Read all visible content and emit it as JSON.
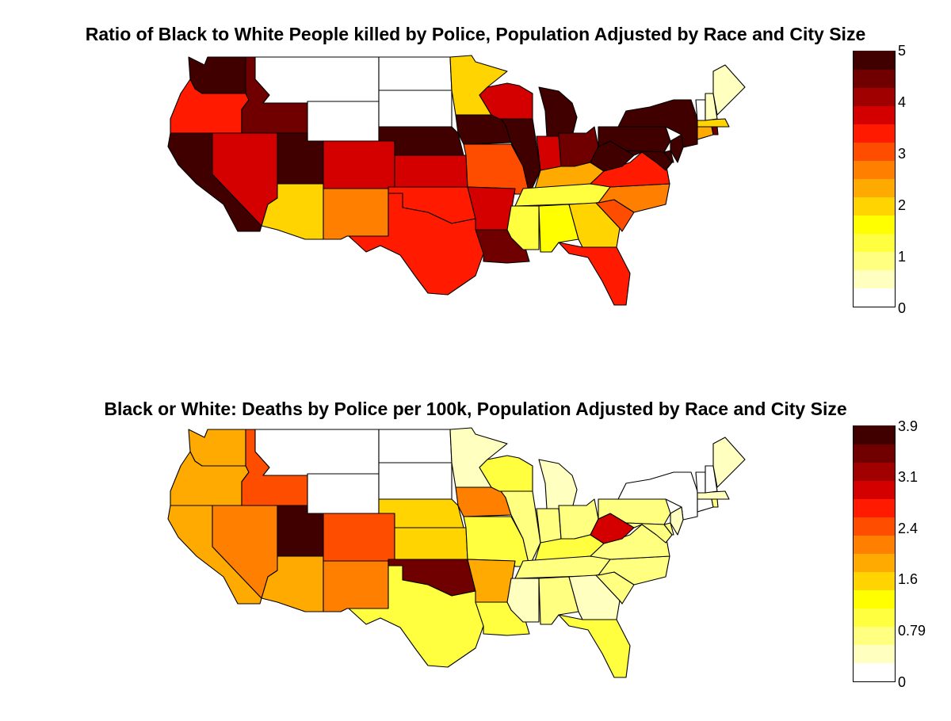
{
  "maps": [
    {
      "id": "top",
      "title": "Ratio of Black to White People killed by Police, Population Adjusted by Race and City Size",
      "colorbar": {
        "min": 0,
        "max": 5,
        "tick_labels": [
          "5",
          "4",
          "3",
          "2",
          "1",
          "0"
        ],
        "colors": [
          "#ffffff",
          "#ffffc0",
          "#ffff80",
          "#ffff40",
          "#ffff00",
          "#ffd400",
          "#ffaa00",
          "#ff8000",
          "#ff4d00",
          "#ff1a00",
          "#d40000",
          "#a00000",
          "#700000",
          "#400000"
        ]
      },
      "states": {
        "WA": 4.9,
        "OR": 3.3,
        "CA": 4.9,
        "NV": 3.6,
        "ID": 4.4,
        "MT": 0,
        "WY": 0,
        "UT": 4.9,
        "AZ": 1.8,
        "CO": 3.8,
        "NM": 2.5,
        "ND": 0,
        "SD": 0,
        "NE": 4.9,
        "KS": 3.6,
        "OK": 3.3,
        "TX": 3.3,
        "MN": 1.8,
        "IA": 4.9,
        "MO": 2.9,
        "AR": 3.6,
        "LA": 4.5,
        "WI": 3.6,
        "IL": 4.9,
        "MI": 4.9,
        "IN": 3.6,
        "OH": 4.4,
        "KY": 2.2,
        "TN": 1.4,
        "MS": 1.4,
        "AL": 1.6,
        "GA": 1.8,
        "FL": 3.3,
        "SC": 2.9,
        "NC": 2.6,
        "VA": 3.3,
        "WV": 4.9,
        "PA": 4.9,
        "NY": 4.9,
        "MD": 4.9,
        "DE": 4.9,
        "NJ": 4.9,
        "CT": 2.4,
        "RI": 4.4,
        "MA": 1.8,
        "VT": 0,
        "NH": 0.6,
        "ME": 0.6
      }
    },
    {
      "id": "bottom",
      "title": "Black or White: Deaths by Police per 100k, Population Adjusted by Race and City Size",
      "colorbar": {
        "min": 0,
        "max": 3.9,
        "tick_labels": [
          "3.9",
          "3.1",
          "2.4",
          "1.6",
          "0.79",
          "0"
        ],
        "colors": [
          "#ffffff",
          "#ffffc0",
          "#ffff80",
          "#ffff40",
          "#ffff00",
          "#ffd400",
          "#ffaa00",
          "#ff8000",
          "#ff4d00",
          "#ff1a00",
          "#d40000",
          "#a00000",
          "#700000",
          "#400000"
        ]
      },
      "states": {
        "WA": 1.9,
        "OR": 1.9,
        "CA": 1.9,
        "NV": 2.2,
        "ID": 2.4,
        "MT": 0,
        "WY": 0,
        "UT": 3.8,
        "AZ": 1.8,
        "CO": 2.5,
        "NM": 2.1,
        "ND": 0,
        "SD": 0,
        "NE": 1.4,
        "KS": 1.4,
        "OK": 3.6,
        "TX": 1.1,
        "MN": 0.4,
        "IA": 2.1,
        "MO": 0.9,
        "AR": 1.8,
        "LA": 0.9,
        "WI": 0.9,
        "IL": 0.7,
        "MI": 0.5,
        "IN": 0.8,
        "OH": 0.8,
        "KY": 1.0,
        "TN": 0.6,
        "MS": 0.4,
        "AL": 0.6,
        "GA": 0.4,
        "FL": 0.9,
        "SC": 0.8,
        "NC": 0.6,
        "VA": 0.6,
        "WV": 2.9,
        "PA": 0.6,
        "NY": 0,
        "MD": 0.6,
        "DE": 0.6,
        "NJ": 0.5,
        "CT": 0,
        "RI": 0.8,
        "MA": 0.5,
        "VT": 0,
        "NH": 0,
        "ME": 0.5
      }
    }
  ]
}
